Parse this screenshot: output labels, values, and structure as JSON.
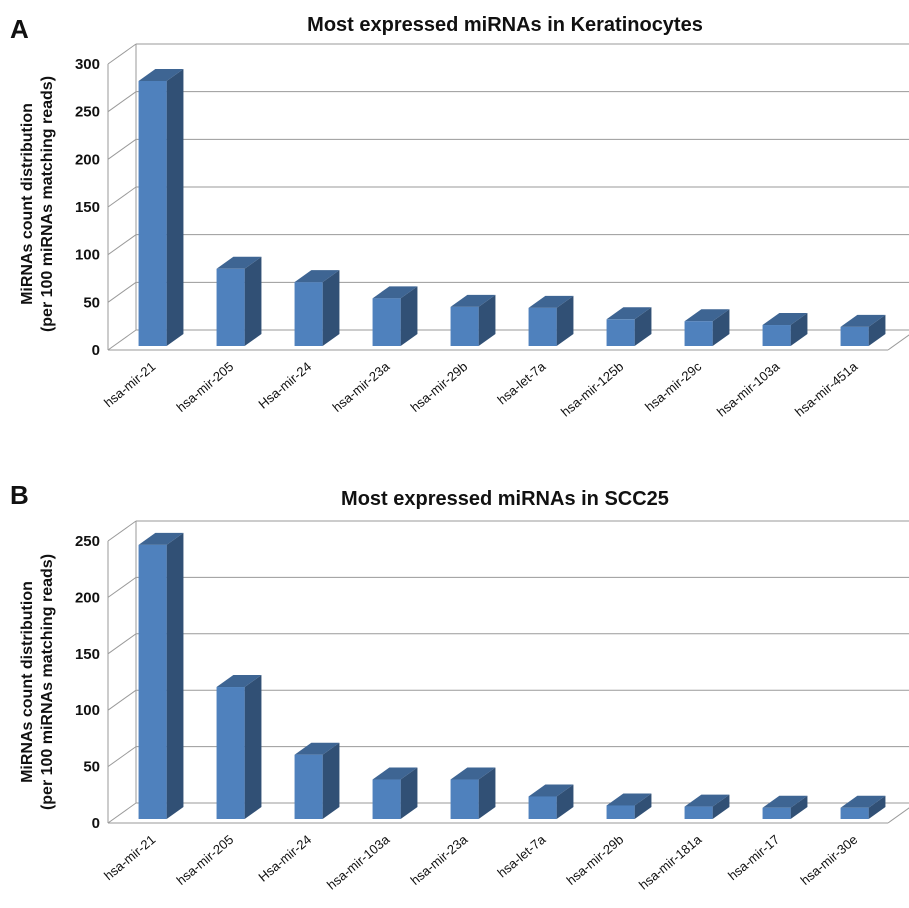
{
  "chart_data": [
    {
      "panel_label": "A",
      "type": "bar",
      "title": "Most expressed miRNAs in Keratinocytes",
      "ylabel_line1": "MiRNAs count distribution",
      "ylabel_line2": "(per 100 miRNAs matching reads)",
      "xlabel": "",
      "ylim": [
        0,
        300
      ],
      "yticks": [
        0,
        50,
        100,
        150,
        200,
        250,
        300
      ],
      "grid": true,
      "categories": [
        "hsa-mir-21",
        "hsa-mir-205",
        "Hsa-mir-24",
        "hsa-mir-23a",
        "hsa-mir-29b",
        "hsa-let-7a",
        "hsa-mir-125b",
        "hsa-mir-29c",
        "hsa-mir-103a",
        "hsa-mir-451a"
      ],
      "values": [
        278,
        81,
        67,
        50,
        41,
        40,
        28,
        26,
        22,
        20
      ],
      "bar_color": "#4f81bd"
    },
    {
      "panel_label": "B",
      "type": "bar",
      "title": "Most expressed miRNAs in SCC25",
      "ylabel_line1": "MiRNAs count distribution",
      "ylabel_line2": "(per 100 miRNAs matching reads)",
      "xlabel": "",
      "ylim": [
        0,
        250
      ],
      "yticks": [
        0,
        50,
        100,
        150,
        200,
        250
      ],
      "grid": true,
      "categories": [
        "hsa-mir-21",
        "hsa-mir-205",
        "Hsa-mir-24",
        "hsa-mir-103a",
        "hsa-mir-23a",
        "hsa-let-7a",
        "hsa-mir-29b",
        "hsa-mir-181a",
        "hsa-mir-17",
        "hsa-mir-30e"
      ],
      "values": [
        243,
        117,
        57,
        35,
        35,
        20,
        12,
        11,
        10,
        10
      ],
      "bar_color": "#4f81bd"
    }
  ]
}
